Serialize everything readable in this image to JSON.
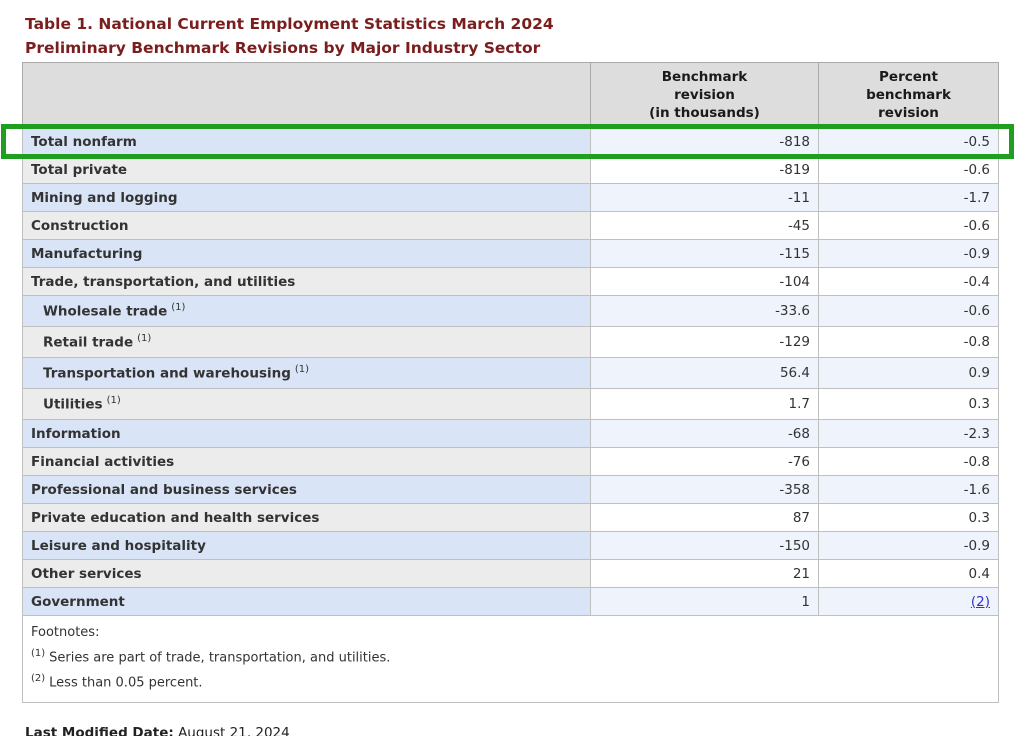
{
  "title": {
    "line1": "Table 1. National Current Employment Statistics March 2024",
    "line2": "Preliminary Benchmark Revisions by Major Industry Sector"
  },
  "colors": {
    "title_maroon": "#7a1d1d",
    "header_bg": "#dddddd",
    "row_blue_label": "#d9e5f7",
    "row_blue_value": "#eef3fc",
    "row_gray_label": "#ececec",
    "row_gray_value": "#ffffff",
    "annotation_green": "#1f9e1f",
    "link_blue": "#3333cc"
  },
  "table": {
    "headers": {
      "col1": "",
      "col2": "Benchmark\nrevision\n(in thousands)",
      "col3": "Percent\nbenchmark\nrevision"
    },
    "rows": [
      {
        "label": "Total nonfarm",
        "benchmark": "-818",
        "percent": "-0.5"
      },
      {
        "label": "Total private",
        "benchmark": "-819",
        "percent": "-0.6"
      },
      {
        "label": "Mining and logging",
        "benchmark": "-11",
        "percent": "-1.7"
      },
      {
        "label": "Construction",
        "benchmark": "-45",
        "percent": "-0.6"
      },
      {
        "label": "Manufacturing",
        "benchmark": "-115",
        "percent": "-0.9"
      },
      {
        "label": "Trade, transportation, and utilities",
        "benchmark": "-104",
        "percent": "-0.4"
      },
      {
        "label": "Wholesale trade",
        "sup": "(1)",
        "benchmark": "-33.6",
        "percent": "-0.6"
      },
      {
        "label": "Retail trade",
        "sup": "(1)",
        "benchmark": "-129",
        "percent": "-0.8"
      },
      {
        "label": "Transportation and warehousing",
        "sup": "(1)",
        "benchmark": "56.4",
        "percent": "0.9"
      },
      {
        "label": "Utilities",
        "sup": "(1)",
        "benchmark": "1.7",
        "percent": "0.3"
      },
      {
        "label": "Information",
        "benchmark": "-68",
        "percent": "-2.3"
      },
      {
        "label": "Financial activities",
        "benchmark": "-76",
        "percent": "-0.8"
      },
      {
        "label": "Professional and business services",
        "benchmark": "-358",
        "percent": "-1.6"
      },
      {
        "label": "Private education and health services",
        "benchmark": "87",
        "percent": "0.3"
      },
      {
        "label": "Leisure and hospitality",
        "benchmark": "-150",
        "percent": "-0.9"
      },
      {
        "label": "Other services",
        "benchmark": "21",
        "percent": "0.4"
      },
      {
        "label": "Government",
        "benchmark": "1",
        "percent_link": "(2)"
      }
    ]
  },
  "footnotes": {
    "label": "Footnotes:",
    "items": [
      {
        "sup": "(1)",
        "text": "Series are part of trade, transportation, and utilities."
      },
      {
        "sup": "(2)",
        "text": "Less than 0.05 percent."
      }
    ]
  },
  "footer": {
    "last_modified_label": "Last Modified Date:",
    "last_modified_value": "August 21, 2024"
  }
}
